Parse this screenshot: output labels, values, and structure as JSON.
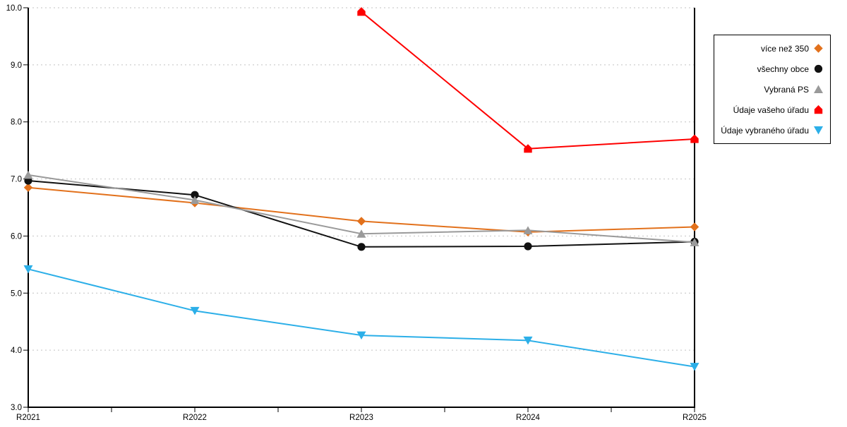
{
  "chart_data": {
    "type": "line",
    "title": "",
    "xlabel": "",
    "ylabel": "",
    "categories": [
      "R2021",
      "R2022",
      "R2023",
      "R2024",
      "R2025"
    ],
    "series": [
      {
        "name": "více než 350",
        "marker": "diamond",
        "color": "#e2711c",
        "values": [
          6.85,
          6.58,
          6.26,
          6.07,
          6.16
        ]
      },
      {
        "name": "všechny obce",
        "marker": "circle",
        "color": "#111111",
        "values": [
          6.97,
          6.72,
          5.81,
          5.82,
          5.9
        ]
      },
      {
        "name": "Vybraná PS",
        "marker": "triangle-up",
        "color": "#9a9a9a",
        "values": [
          7.07,
          6.63,
          6.04,
          6.1,
          5.89
        ]
      },
      {
        "name": "Údaje vašeho úřadu",
        "marker": "pentagon",
        "color": "#fe0000",
        "values": [
          null,
          null,
          9.93,
          7.53,
          7.7
        ]
      },
      {
        "name": "Údaje vybraného úřadu",
        "marker": "triangle-down",
        "color": "#2cafe8",
        "values": [
          5.42,
          4.69,
          4.26,
          4.17,
          3.71
        ]
      }
    ],
    "ylim": [
      3.0,
      10.0
    ],
    "yticks": [
      3,
      4,
      5,
      6,
      7,
      8,
      9,
      10
    ],
    "ytick_labels": [
      "3.0",
      "4.0",
      "5.0",
      "6.0",
      "7.0",
      "8.0",
      "9.0",
      "10.0"
    ],
    "x_minor_ticks_at_midpoints": true,
    "grid": "horizontal-dotted",
    "grid_color": "#c2c2c2",
    "axis_color": "#000000",
    "legend_position": "right"
  }
}
